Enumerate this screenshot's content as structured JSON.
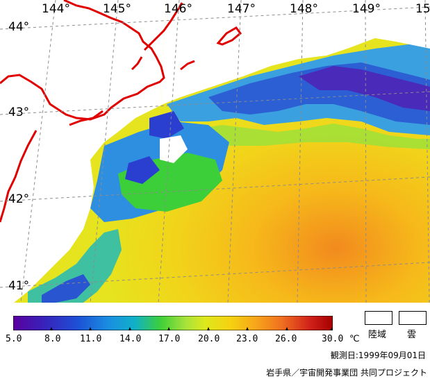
{
  "map": {
    "longitude_labels": [
      "144°",
      "145°",
      "146°",
      "147°",
      "148°",
      "149°",
      "15"
    ],
    "latitude_labels": [
      "44°",
      "43°",
      "42°",
      "41°"
    ],
    "colors": {
      "coastline": "#e00000",
      "graticule": "#9a9a9a",
      "land": "#ffffff",
      "cloud": "#ffffff"
    }
  },
  "colorbar": {
    "tick_labels": [
      "5.0",
      "8.0",
      "11.0",
      "14.0",
      "17.0",
      "20.0",
      "23.0",
      "26.0",
      "30.0"
    ],
    "unit": "℃",
    "colors": [
      "#5a00a0",
      "#3a1fb8",
      "#1d4fd6",
      "#1a8fe0",
      "#10b0c8",
      "#3ccf3a",
      "#a8e23a",
      "#dde81c",
      "#f6d20f",
      "#f7a51a",
      "#f07020",
      "#d0201a",
      "#a40000"
    ]
  },
  "legend": {
    "land_label": "陸域",
    "cloud_label": "雲"
  },
  "footer": {
    "observation_date": "観測日:1999年09月01日",
    "credit": "岩手県／宇宙開発事業団 共同プロジェクト"
  }
}
